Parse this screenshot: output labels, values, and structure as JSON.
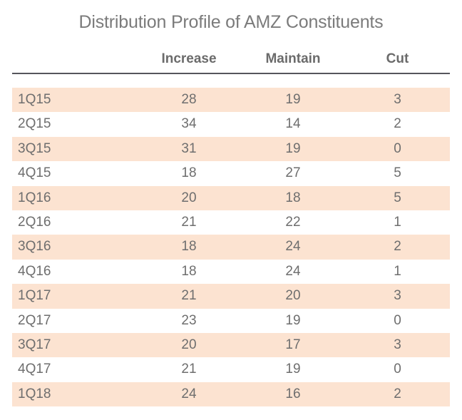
{
  "title": "Distribution Profile of AMZ Constituents",
  "chart_data": {
    "type": "table",
    "title": "Distribution Profile of AMZ Constituents",
    "columns": [
      "",
      "Increase",
      "Maintain",
      "Cut"
    ],
    "categories": [
      "1Q15",
      "2Q15",
      "3Q15",
      "4Q15",
      "1Q16",
      "2Q16",
      "3Q16",
      "4Q16",
      "1Q17",
      "2Q17",
      "3Q17",
      "4Q17",
      "1Q18"
    ],
    "series": [
      {
        "name": "Increase",
        "values": [
          28,
          34,
          31,
          18,
          20,
          21,
          18,
          18,
          21,
          23,
          20,
          21,
          24
        ]
      },
      {
        "name": "Maintain",
        "values": [
          19,
          14,
          19,
          27,
          18,
          22,
          24,
          24,
          20,
          19,
          17,
          19,
          16
        ]
      },
      {
        "name": "Cut",
        "values": [
          3,
          2,
          0,
          5,
          5,
          1,
          2,
          1,
          3,
          0,
          3,
          0,
          2
        ]
      }
    ],
    "layout_hints": {
      "row_striping": "alternating, first row shaded",
      "grid": "off",
      "header_rule": "solid dark line under column headers"
    }
  },
  "colors": {
    "stripe": "#fce3d1",
    "rule": "#55555c",
    "cell_text": "#6e6e6e",
    "header_text": "#6b6b6b",
    "title_text": "#7b7b7b",
    "background": "#ffffff"
  }
}
